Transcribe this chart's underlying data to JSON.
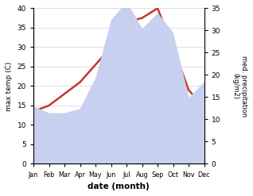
{
  "months": [
    "Jan",
    "Feb",
    "Mar",
    "Apr",
    "May",
    "Jun",
    "Jul",
    "Aug",
    "Sep",
    "Oct",
    "Nov",
    "Dec"
  ],
  "max_temp": [
    13.5,
    15.0,
    18.0,
    21.0,
    25.5,
    30.0,
    36.5,
    37.5,
    40.0,
    30.0,
    19.0,
    14.5
  ],
  "precipitation": [
    13.0,
    11.5,
    11.5,
    12.5,
    19.5,
    32.5,
    36.5,
    30.5,
    34.0,
    29.5,
    15.0,
    18.5
  ],
  "temp_color": "#c0392b",
  "precip_fill_color": "#c8d0f0",
  "temp_ylim": [
    0,
    40
  ],
  "precip_ylim": [
    0,
    35
  ],
  "xlabel": "date (month)",
  "ylabel_left": "max temp (C)",
  "ylabel_right": "med. precipitation\n(kg/m2)",
  "background_color": "#ffffff",
  "grid_color": "#d0d0d0"
}
